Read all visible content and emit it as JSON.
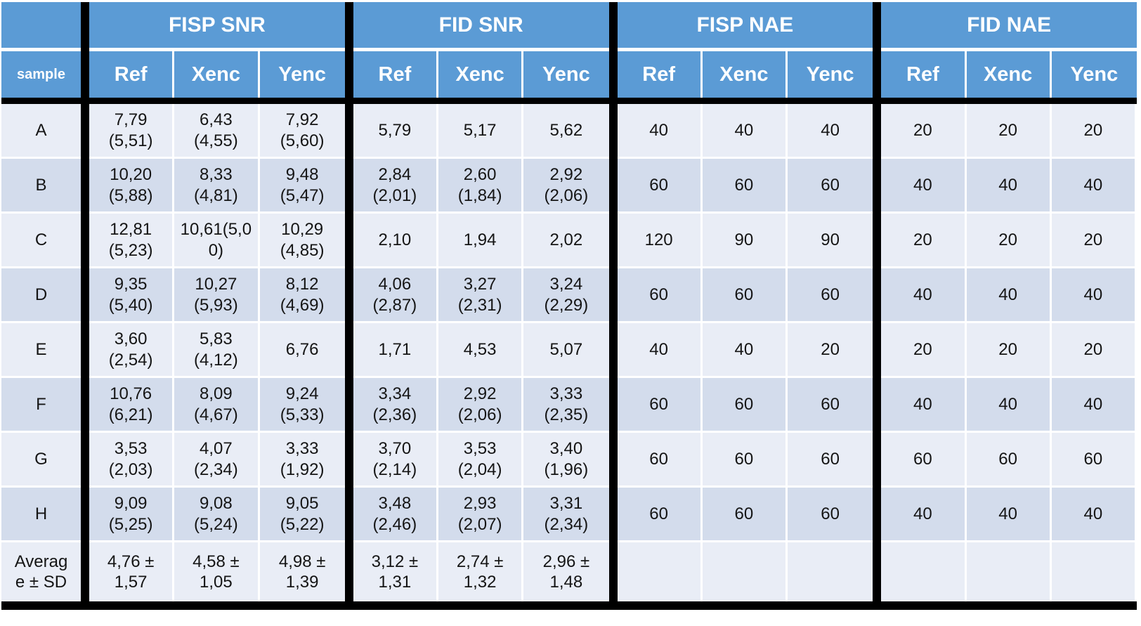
{
  "table": {
    "corner_label": "",
    "sample_header": "sample",
    "groups": [
      {
        "label": "FISP SNR"
      },
      {
        "label": "FID SNR"
      },
      {
        "label": "FISP NAE"
      },
      {
        "label": "FID NAE"
      }
    ],
    "sub_headers": [
      "Ref",
      "Xenc",
      "Yenc"
    ],
    "rows": [
      {
        "sample": "A",
        "cells": [
          "7,79\n(5,51)",
          "6,43\n(4,55)",
          "7,92\n(5,60)",
          "5,79",
          "5,17",
          "5,62",
          "40",
          "40",
          "40",
          "20",
          "20",
          "20"
        ]
      },
      {
        "sample": "B",
        "cells": [
          "10,20\n(5,88)",
          "8,33\n(4,81)",
          "9,48\n(5,47)",
          "2,84\n(2,01)",
          "2,60\n(1,84)",
          "2,92\n(2,06)",
          "60",
          "60",
          "60",
          "40",
          "40",
          "40"
        ]
      },
      {
        "sample": "C",
        "cells": [
          "12,81\n(5,23)",
          "10,61(5,0\n0)",
          "10,29\n(4,85)",
          "2,10",
          "1,94",
          "2,02",
          "120",
          "90",
          "90",
          "20",
          "20",
          "20"
        ]
      },
      {
        "sample": "D",
        "cells": [
          "9,35\n(5,40)",
          "10,27\n(5,93)",
          "8,12\n(4,69)",
          "4,06\n(2,87)",
          "3,27\n(2,31)",
          "3,24\n(2,29)",
          "60",
          "60",
          "60",
          "40",
          "40",
          "40"
        ]
      },
      {
        "sample": "E",
        "cells": [
          "3,60\n(2,54)",
          "5,83\n(4,12)",
          "6,76",
          "1,71",
          "4,53",
          "5,07",
          "40",
          "40",
          "20",
          "20",
          "20",
          "20"
        ]
      },
      {
        "sample": "F",
        "cells": [
          "10,76\n(6,21)",
          "8,09\n(4,67)",
          "9,24\n(5,33)",
          "3,34\n(2,36)",
          "2,92\n(2,06)",
          "3,33\n(2,35)",
          "60",
          "60",
          "60",
          "40",
          "40",
          "40"
        ]
      },
      {
        "sample": "G",
        "cells": [
          "3,53\n(2,03)",
          "4,07\n(2,34)",
          "3,33\n(1,92)",
          "3,70\n(2,14)",
          "3,53\n(2,04)",
          "3,40\n(1,96)",
          "60",
          "60",
          "60",
          "60",
          "60",
          "60"
        ]
      },
      {
        "sample": "H",
        "cells": [
          "9,09\n(5,25)",
          "9,08\n(5,24)",
          "9,05\n(5,22)",
          "3,48\n(2,46)",
          "2,93\n(2,07)",
          "3,31\n(2,34)",
          "60",
          "60",
          "60",
          "40",
          "40",
          "40"
        ]
      },
      {
        "sample": "Averag\ne ± SD",
        "cells": [
          "4,76 ±\n1,57",
          "4,58 ±\n1,05",
          "4,98 ±\n1,39",
          "3,12 ±\n1,31",
          "2,74 ±\n1,32",
          "2,96 ±\n1,48",
          "",
          "",
          "",
          "",
          "",
          ""
        ]
      }
    ],
    "colors": {
      "header_bg": "#5B9BD5",
      "header_text": "#FFFFFF",
      "row_light": "#E9EDF6",
      "row_dark": "#D3DCEC",
      "divider": "#000000",
      "body_text": "#151515"
    }
  }
}
